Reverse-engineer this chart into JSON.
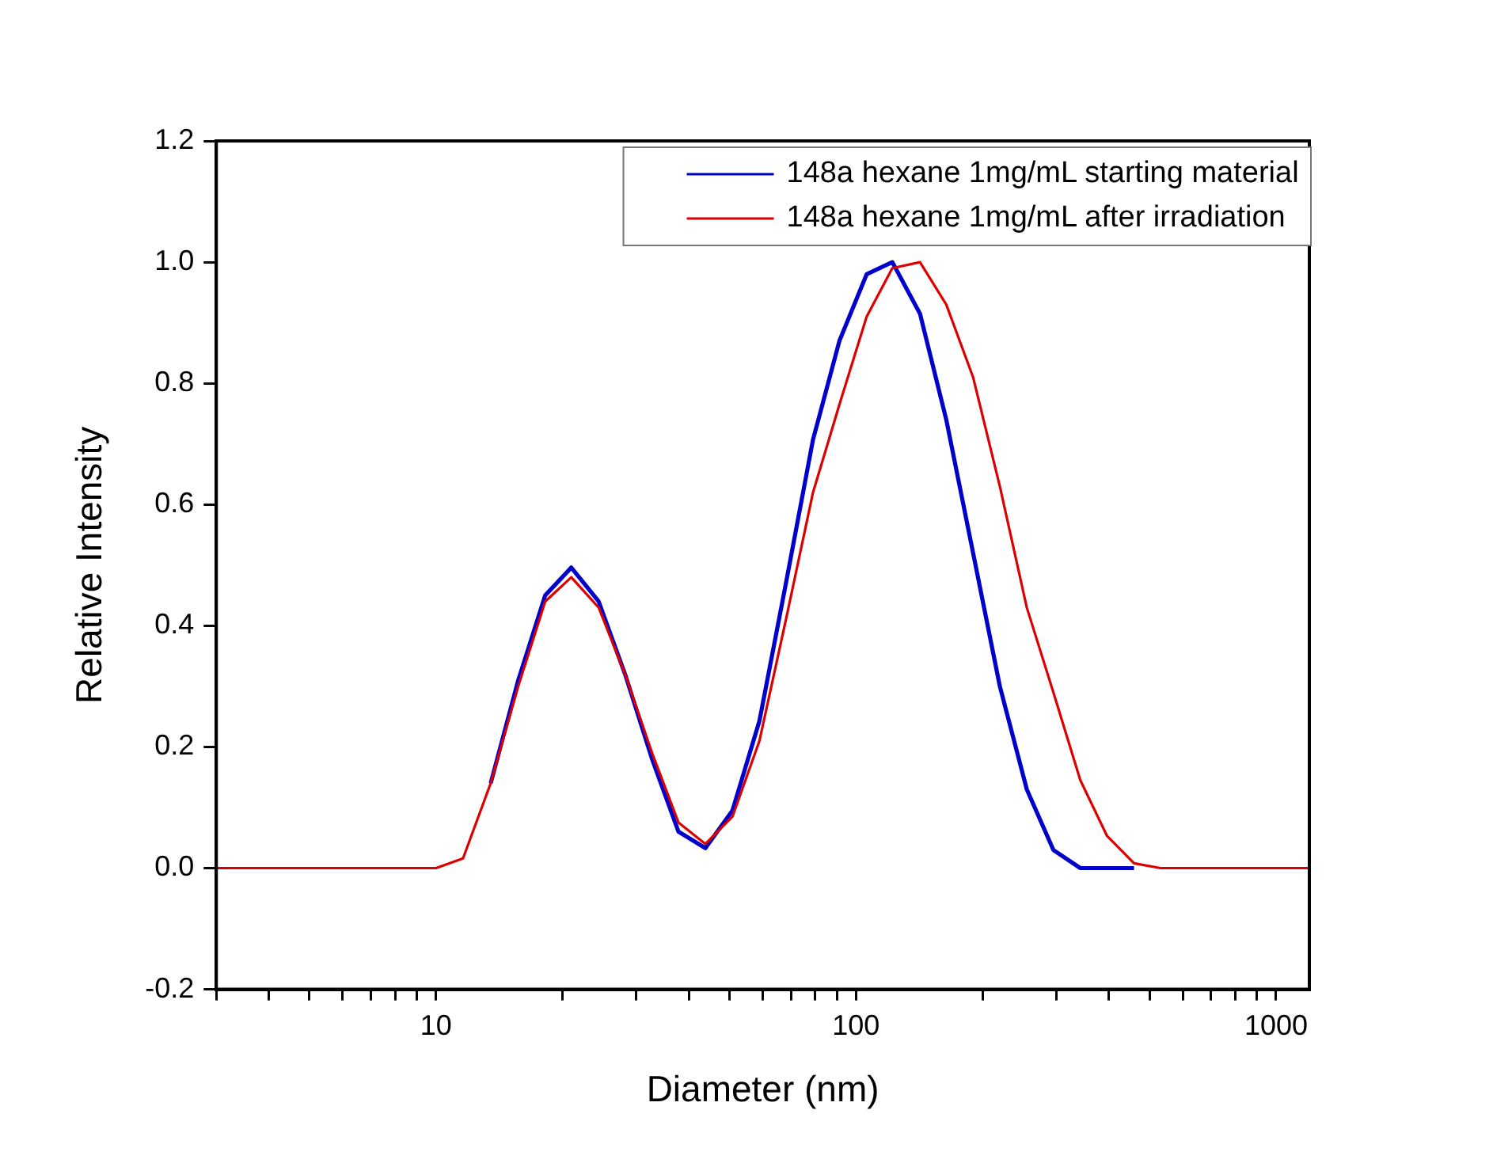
{
  "chart_data": {
    "type": "line",
    "xlabel": "Diameter (nm)",
    "ylabel": "Relative Intensity",
    "log": "x",
    "xlim": [
      3,
      1200
    ],
    "xticks": [
      {
        "value": 3,
        "label": null
      },
      {
        "value": 4,
        "label": null
      },
      {
        "value": 5,
        "label": null
      },
      {
        "value": 6,
        "label": null
      },
      {
        "value": 7,
        "label": null
      },
      {
        "value": 8,
        "label": null
      },
      {
        "value": 9,
        "label": null
      },
      10,
      {
        "value": 20,
        "label": null
      },
      {
        "value": 30,
        "label": null
      },
      {
        "value": 40,
        "label": null
      },
      {
        "value": 50,
        "label": null
      },
      {
        "value": 60,
        "label": null
      },
      {
        "value": 70,
        "label": null
      },
      {
        "value": 80,
        "label": null
      },
      {
        "value": 90,
        "label": null
      },
      100,
      {
        "value": 200,
        "label": null
      },
      {
        "value": 300,
        "label": null
      },
      {
        "value": 400,
        "label": null
      },
      {
        "value": 500,
        "label": null
      },
      {
        "value": 600,
        "label": null
      },
      {
        "value": 700,
        "label": null
      },
      {
        "value": 800,
        "label": null
      },
      {
        "value": 900,
        "label": null
      },
      1000
    ],
    "ylim": [
      -0.2,
      1.2
    ],
    "yticks": [
      {
        "value": -0.2,
        "label": "-0.2"
      },
      {
        "value": 0,
        "label": "0.0"
      },
      {
        "value": 0.2,
        "label": "0.2"
      },
      {
        "value": 0.4,
        "label": "0.4"
      },
      {
        "value": 0.6,
        "label": "0.6"
      },
      {
        "value": 0.8,
        "label": "0.8"
      },
      {
        "value": 1,
        "label": "1.0"
      },
      {
        "value": 1.2,
        "label": "1.2"
      }
    ],
    "grid": false,
    "legend": "top right",
    "marker": "none",
    "line_style": "solid",
    "series": [
      {
        "name": "148a hexane 1mg/mL starting material",
        "color": "#0000cc",
        "x": [
          13.5,
          15.7,
          18.2,
          21,
          24.4,
          28.2,
          32.7,
          37.8,
          43.8,
          50.8,
          58.9,
          68.1,
          79,
          91.3,
          106,
          122,
          142,
          164,
          190,
          220,
          255,
          295,
          342,
          396,
          459
        ],
        "values": [
          0.14,
          0.31,
          0.45,
          0.496,
          0.44,
          0.32,
          0.18,
          0.06,
          0.033,
          0.095,
          0.243,
          0.47,
          0.707,
          0.87,
          0.98,
          1.0,
          0.915,
          0.74,
          0.52,
          0.3,
          0.13,
          0.03,
          0,
          0,
          0
        ]
      },
      {
        "name": "148a hexane 1mg/mL after irradiation",
        "color": "#dd0000",
        "x": [
          3,
          10,
          11.6,
          13.5,
          15.7,
          18.2,
          21,
          24.4,
          28.2,
          32.7,
          37.8,
          43.8,
          50.8,
          58.9,
          68.1,
          79,
          91.3,
          106,
          122,
          142,
          164,
          190,
          220,
          255,
          295,
          342,
          396,
          459,
          531,
          1200
        ],
        "values": [
          0,
          0,
          0.016,
          0.14,
          0.3,
          0.44,
          0.48,
          0.43,
          0.32,
          0.19,
          0.075,
          0.04,
          0.085,
          0.21,
          0.41,
          0.62,
          0.765,
          0.91,
          0.99,
          1.0,
          0.93,
          0.81,
          0.63,
          0.43,
          0.29,
          0.145,
          0.053,
          0.008,
          0,
          0
        ]
      }
    ]
  }
}
